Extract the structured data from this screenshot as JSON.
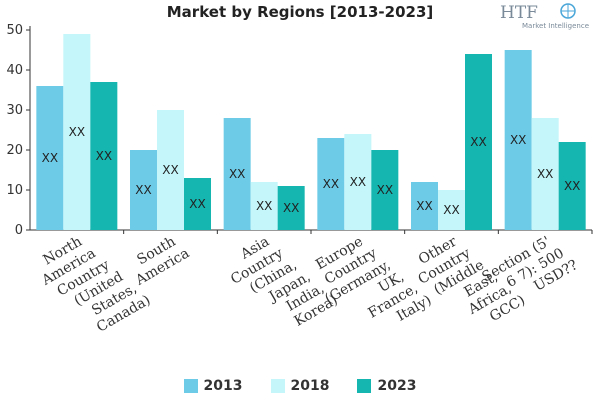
{
  "chart_data": {
    "type": "bar",
    "title": "Market by Regions [2013-2023]",
    "categories": [
      "North America Country (United States, Canada)",
      "South America",
      "Asia Country (China, Japan, India, Korea)",
      "Europe Country (Germany, UK, France, Italy)",
      "Other Country (Middle East, Africa, GCC)",
      "Section (5' 6 7): 500 USD??"
    ],
    "category_lines": [
      [
        "North",
        "America",
        "Country",
        "(United",
        "States,",
        "Canada)"
      ],
      [
        "South",
        "America"
      ],
      [
        "Asia",
        "Country",
        "(China,",
        "Japan,",
        "India,",
        "Korea)"
      ],
      [
        "Europe",
        "Country",
        "(Germany,",
        "UK,",
        "France,",
        "Italy)"
      ],
      [
        "Other",
        "Country",
        "(Middle",
        "East,",
        "Africa,",
        "GCC)"
      ],
      [
        "Section (5'",
        "6 7): 500",
        "USD??"
      ]
    ],
    "series": [
      {
        "name": "2013",
        "color": "#6dcbe8",
        "values": [
          36,
          20,
          28,
          23,
          12,
          45
        ]
      },
      {
        "name": "2018",
        "color": "#c4f6fa",
        "values": [
          49,
          30,
          12,
          24,
          10,
          28
        ]
      },
      {
        "name": "2023",
        "color": "#15b5b0",
        "values": [
          37,
          13,
          11,
          20,
          44,
          22
        ]
      }
    ],
    "data_label": "XX",
    "ylim": [
      0,
      50
    ],
    "yticks": [
      0,
      10,
      20,
      30,
      40,
      50
    ],
    "xlabel": "",
    "ylabel": "",
    "grid": false,
    "legend_position": "bottom"
  },
  "logo": {
    "text": "HTF",
    "subtext": "Market Intelligence"
  }
}
